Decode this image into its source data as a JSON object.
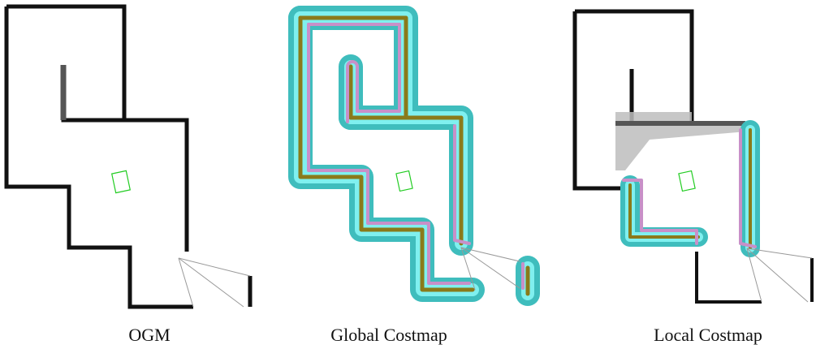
{
  "panels": [
    {
      "id": "ogm",
      "caption": "OGM"
    },
    {
      "id": "global",
      "caption": "Global Costmap"
    },
    {
      "id": "local",
      "caption": "Local Costmap"
    }
  ],
  "colors": {
    "wall": "#111111",
    "inflation": "#3fbdbd",
    "inscribed": "#7ff0ef",
    "lethal": "#8a7a1a",
    "radius": "#c890c8",
    "robot": "#22cc22",
    "scan": "#888888",
    "unknown": "#bdbdbd"
  }
}
